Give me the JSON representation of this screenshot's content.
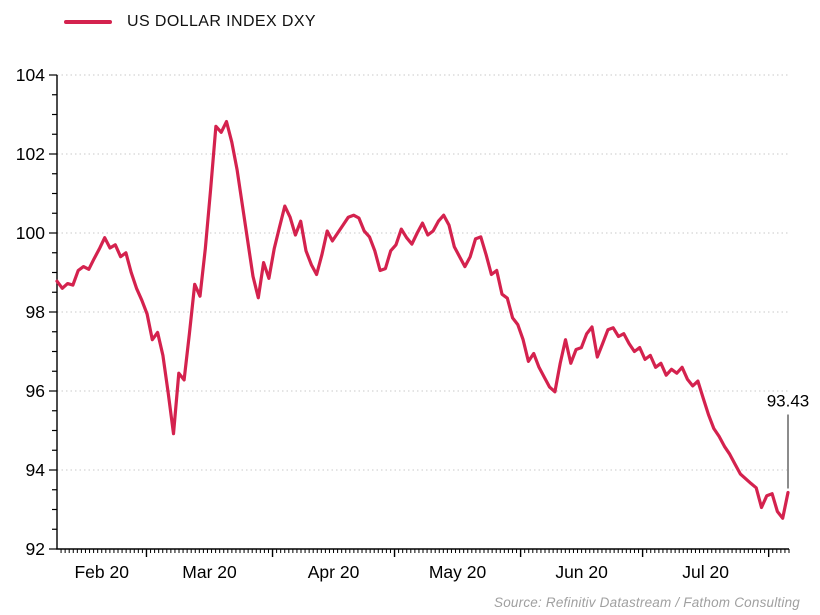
{
  "legend": {
    "label": "US DOLLAR INDEX DXY"
  },
  "annotation": {
    "label": "93.43"
  },
  "source": {
    "text": "Source: Refinitiv Datastream / Fathom Consulting"
  },
  "colors": {
    "line": "#D4224E",
    "grid": "#C9C9C9",
    "axis": "#000000",
    "callout": "#8C8C8C",
    "source_text": "#A0A0A0"
  },
  "chart_data": {
    "type": "line",
    "title": "US DOLLAR INDEX DXY",
    "legend_position": "top-left",
    "x_axis": {
      "months": [
        {
          "label": "Feb 20",
          "start_day": 0,
          "end_day": 22
        },
        {
          "label": "Mar 20",
          "start_day": 22,
          "end_day": 53
        },
        {
          "label": "Apr 20",
          "start_day": 53,
          "end_day": 83
        },
        {
          "label": "May 20",
          "start_day": 83,
          "end_day": 114
        },
        {
          "label": "Jun 20",
          "start_day": 114,
          "end_day": 144
        },
        {
          "label": "Jul 20",
          "start_day": 144,
          "end_day": 175
        }
      ],
      "month_boundary_days": [
        22,
        53,
        83,
        114,
        144,
        175
      ],
      "total_days": 180,
      "minor_tick_unit": "day"
    },
    "y_axis": {
      "min": 92,
      "max": 104,
      "major_step": 2,
      "minor_step": 0.5,
      "major_tick_labels": [
        "92",
        "94",
        "96",
        "98",
        "100",
        "102",
        "104"
      ]
    },
    "grid": {
      "horizontal_dotted_at": [
        94,
        96,
        98,
        100,
        102,
        104
      ]
    },
    "series": [
      {
        "name": "US DOLLAR INDEX DXY",
        "color": "#D4224E",
        "values": [
          98.78,
          98.6,
          98.72,
          98.68,
          99.05,
          99.15,
          99.08,
          99.35,
          99.6,
          99.88,
          99.62,
          99.7,
          99.4,
          99.5,
          99.0,
          98.6,
          98.3,
          97.95,
          97.3,
          97.48,
          96.9,
          95.95,
          94.92,
          96.45,
          96.28,
          97.45,
          98.7,
          98.4,
          99.6,
          101.1,
          102.7,
          102.55,
          102.82,
          102.3,
          101.6,
          100.7,
          99.8,
          98.9,
          98.36,
          99.25,
          98.85,
          99.6,
          100.15,
          100.68,
          100.4,
          99.95,
          100.3,
          99.55,
          99.2,
          98.95,
          99.45,
          100.05,
          99.8,
          100.0,
          100.2,
          100.4,
          100.45,
          100.38,
          100.05,
          99.9,
          99.55,
          99.05,
          99.1,
          99.55,
          99.7,
          100.1,
          99.88,
          99.72,
          100.0,
          100.25,
          99.95,
          100.05,
          100.3,
          100.45,
          100.2,
          99.65,
          99.4,
          99.15,
          99.4,
          99.85,
          99.9,
          99.45,
          98.95,
          99.05,
          98.45,
          98.35,
          97.85,
          97.68,
          97.3,
          96.75,
          96.95,
          96.6,
          96.35,
          96.1,
          95.98,
          96.7,
          97.3,
          96.7,
          97.05,
          97.1,
          97.45,
          97.62,
          96.86,
          97.2,
          97.55,
          97.6,
          97.38,
          97.45,
          97.2,
          97.0,
          97.1,
          96.8,
          96.9,
          96.6,
          96.7,
          96.4,
          96.55,
          96.45,
          96.6,
          96.3,
          96.13,
          96.25,
          95.82,
          95.4,
          95.05,
          94.85,
          94.6,
          94.4,
          94.15,
          93.9,
          93.78,
          93.66,
          93.55,
          93.05,
          93.35,
          93.4,
          92.95,
          92.78,
          93.43
        ]
      }
    ],
    "last_value": 93.43
  }
}
